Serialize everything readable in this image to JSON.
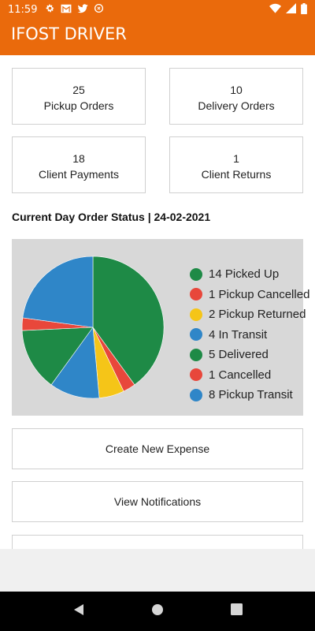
{
  "status_bar": {
    "time": "11:59",
    "left_icons": [
      "gear-icon",
      "gmail-icon",
      "twitter-icon",
      "sync-icon"
    ],
    "right_icons": [
      "wifi-icon",
      "signal-icon",
      "battery-icon"
    ]
  },
  "app": {
    "title": "IFOST DRIVER",
    "brand_color": "#ea6a0c"
  },
  "stats": [
    {
      "value": "25",
      "label": "Pickup Orders"
    },
    {
      "value": "10",
      "label": "Delivery Orders"
    },
    {
      "value": "18",
      "label": "Client Payments"
    },
    {
      "value": "1",
      "label": "Client Returns"
    }
  ],
  "section_title": "Current Day Order Status | 24-02-2021",
  "chart_data": {
    "type": "pie",
    "title": "",
    "slices": [
      {
        "label": "14 Picked Up",
        "value": 14,
        "color": "#1e8a46"
      },
      {
        "label": "1 Pickup Cancelled",
        "value": 1,
        "color": "#e8473b"
      },
      {
        "label": "2 Pickup Returned",
        "value": 2,
        "color": "#f5c518"
      },
      {
        "label": "4 In Transit",
        "value": 4,
        "color": "#2f86c8"
      },
      {
        "label": "5 Delivered",
        "value": 5,
        "color": "#1e8a46"
      },
      {
        "label": "1 Cancelled",
        "value": 1,
        "color": "#e8473b"
      },
      {
        "label": "8 Pickup Transit",
        "value": 8,
        "color": "#2f86c8"
      }
    ],
    "legend_position": "right"
  },
  "actions": {
    "create_expense": "Create New Expense",
    "view_notifications": "View Notifications"
  },
  "nav": {
    "icons": [
      "back-icon",
      "home-icon",
      "recents-icon"
    ]
  }
}
